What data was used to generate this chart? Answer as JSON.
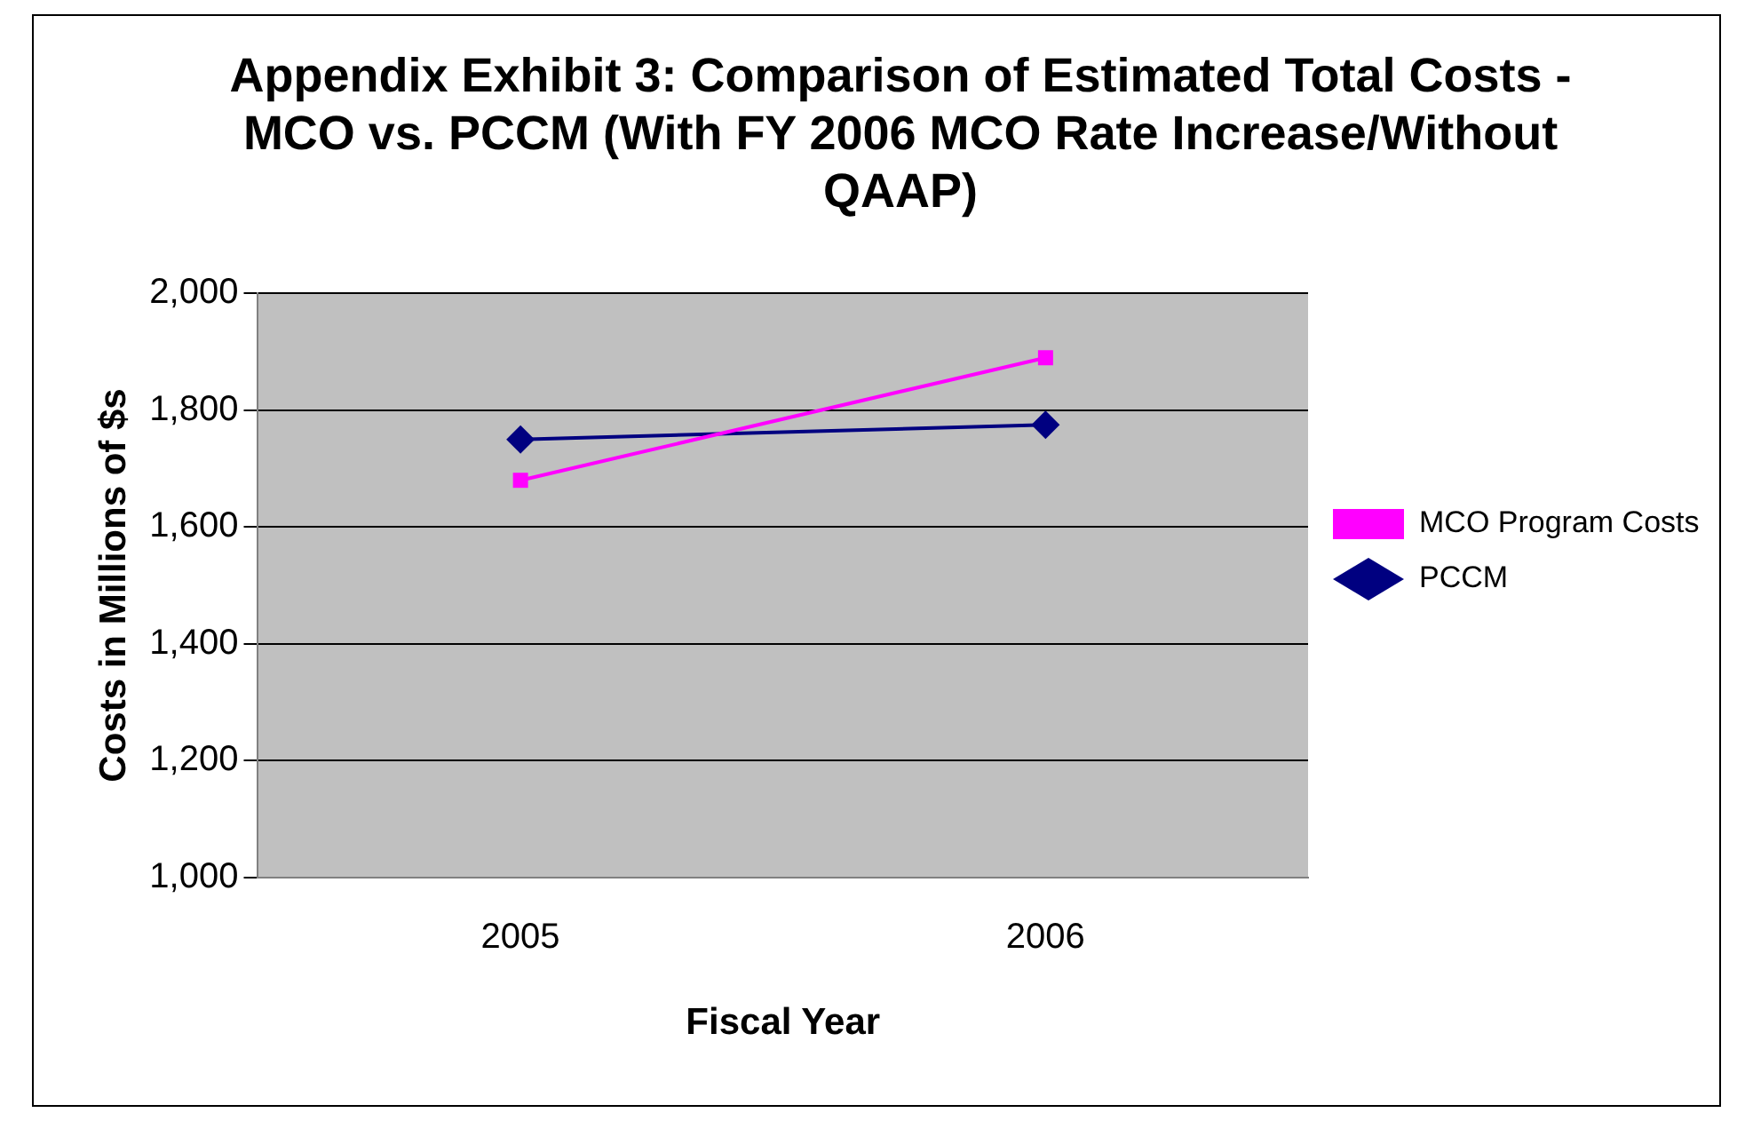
{
  "chart_data": {
    "type": "line",
    "title": "Appendix Exhibit 3: Comparison of Estimated Total Costs - MCO vs. PCCM (With FY 2006 MCO Rate Increase/Without QAAP)",
    "xlabel": "Fiscal Year",
    "ylabel": "Costs in Millions of $s",
    "categories": [
      "2005",
      "2006"
    ],
    "series": [
      {
        "name": "MCO Program Costs",
        "color": "#ff00ff",
        "marker": "square",
        "values": [
          1680,
          1890
        ]
      },
      {
        "name": "PCCM",
        "color": "#000080",
        "marker": "diamond",
        "values": [
          1750,
          1775
        ]
      }
    ],
    "ylim": [
      1000,
      2000
    ],
    "yticks": [
      {
        "value": 1000,
        "label": "1,000"
      },
      {
        "value": 1200,
        "label": "1,200"
      },
      {
        "value": 1400,
        "label": "1,400"
      },
      {
        "value": 1600,
        "label": "1,600"
      },
      {
        "value": 1800,
        "label": "1,800"
      },
      {
        "value": 2000,
        "label": "2,000"
      }
    ],
    "grid": "y",
    "legend": "right"
  }
}
